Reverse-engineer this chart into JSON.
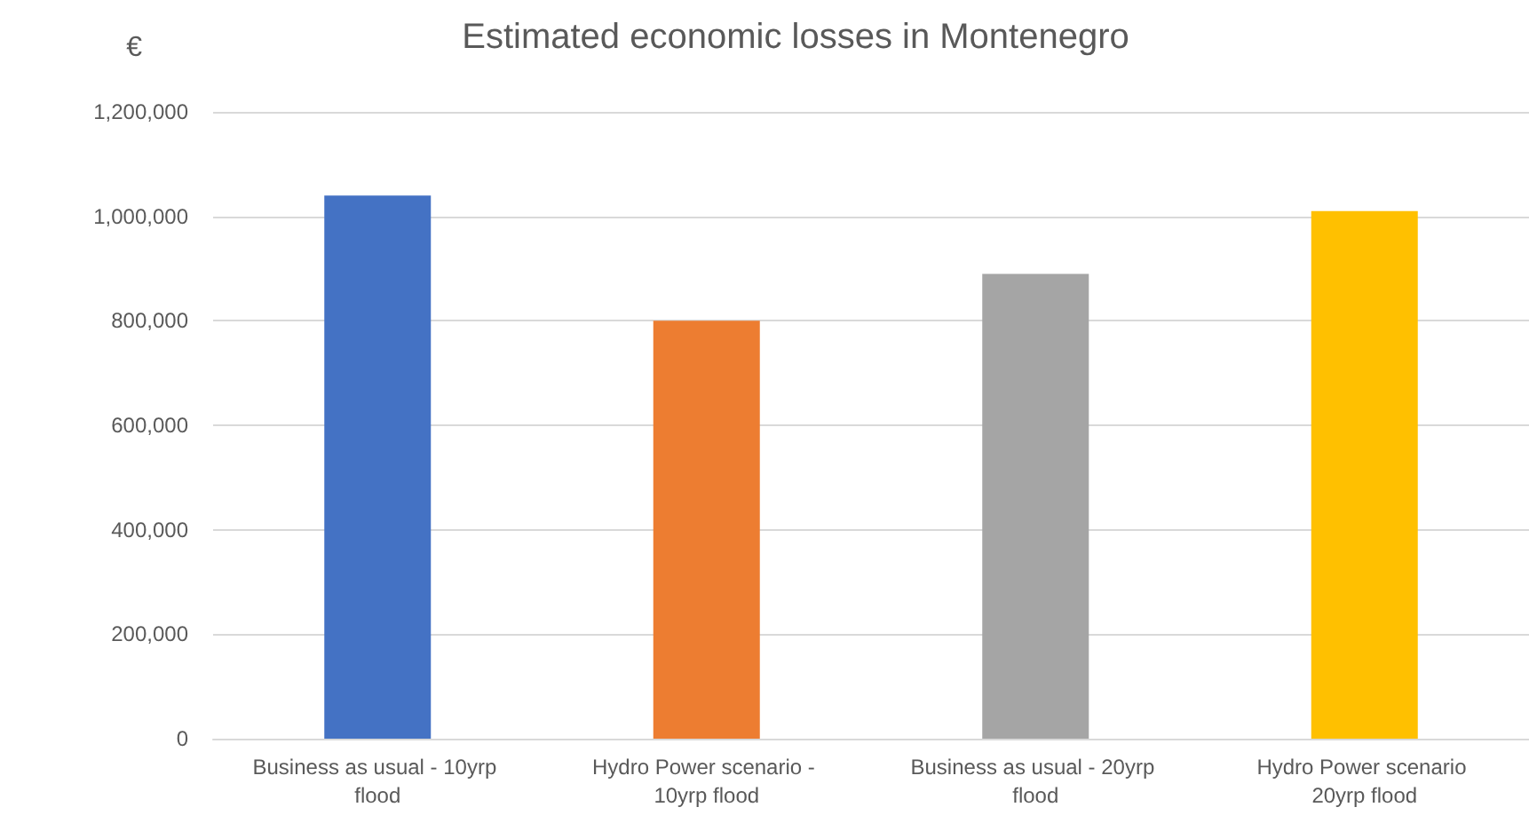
{
  "chart_data": {
    "type": "bar",
    "title": "Estimated economic losses in Montenegro",
    "ylabel": "€",
    "categories": [
      "Business as usual - 10yrp flood",
      "Hydro Power scenario - 10yrp flood",
      "Business as usual - 20yrp flood",
      "Hydro Power scenario 20yrp flood"
    ],
    "values": [
      1040000,
      800000,
      890000,
      1010000
    ],
    "colors": [
      "#4472c4",
      "#ed7d31",
      "#a5a5a5",
      "#ffc000"
    ],
    "ylim": [
      0,
      1200000
    ],
    "yticks": [
      0,
      {
        "value": 200000,
        "label": "200,000"
      },
      {
        "value": 400000,
        "label": "400,000"
      },
      {
        "value": 600000,
        "label": "600,000"
      },
      {
        "value": 800000,
        "label": "800,000"
      },
      {
        "value": 1000000,
        "label": "1,000,000"
      },
      {
        "value": 1200000,
        "label": "1,200,000"
      }
    ],
    "grid": "y"
  }
}
